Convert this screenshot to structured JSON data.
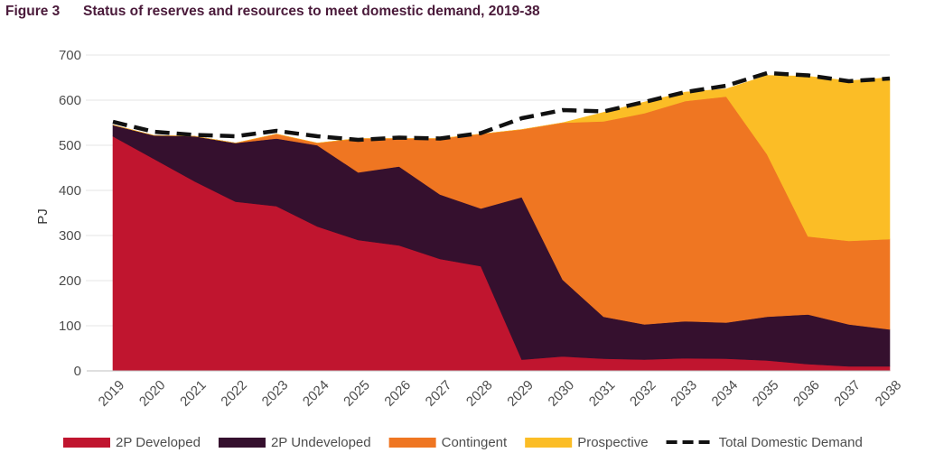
{
  "header": {
    "figure_label": "Figure 3",
    "title": "Status of reserves and resources to meet domestic demand, 2019-38"
  },
  "chart_data": {
    "type": "area",
    "stacked": true,
    "title": "Status of reserves and resources to meet domestic demand, 2019-38",
    "xlabel": "",
    "ylabel": "PJ",
    "ylim": [
      0,
      700
    ],
    "yticks": [
      0,
      100,
      200,
      300,
      400,
      500,
      600,
      700
    ],
    "grid": "horizontal",
    "legend_position": "bottom",
    "x": [
      "2019",
      "2020",
      "2021",
      "2022",
      "2023",
      "2024",
      "2025",
      "2026",
      "2027",
      "2028",
      "2029",
      "2030",
      "2031",
      "2032",
      "2033",
      "2034",
      "2035",
      "2036",
      "2037",
      "2038"
    ],
    "series": [
      {
        "name": "2P Developed",
        "kind": "area",
        "color": "#c0152f",
        "values": [
          520,
          470,
          420,
          375,
          365,
          320,
          290,
          278,
          248,
          232,
          25,
          32,
          27,
          25,
          28,
          27,
          23,
          15,
          10,
          10
        ]
      },
      {
        "name": "2P Undeveloped",
        "kind": "area",
        "color": "#35102e",
        "values": [
          25,
          52,
          100,
          130,
          150,
          180,
          150,
          175,
          143,
          128,
          360,
          170,
          93,
          78,
          82,
          80,
          97,
          110,
          93,
          82
        ]
      },
      {
        "name": "Contingent",
        "kind": "area",
        "color": "#ef7622",
        "values": [
          0,
          0,
          0,
          0,
          10,
          5,
          75,
          62,
          124,
          165,
          150,
          348,
          433,
          468,
          488,
          501,
          360,
          173,
          185,
          200
        ]
      },
      {
        "name": "Prospective",
        "kind": "area",
        "color": "#fbbd26",
        "values": [
          0,
          0,
          0,
          0,
          0,
          0,
          0,
          0,
          0,
          0,
          0,
          0,
          20,
          25,
          20,
          17,
          175,
          355,
          355,
          358
        ]
      },
      {
        "name": "Total Domestic Demand",
        "kind": "line",
        "color": "#111111",
        "dashed": true,
        "values": [
          552,
          530,
          523,
          520,
          532,
          520,
          512,
          517,
          515,
          527,
          560,
          578,
          575,
          596,
          618,
          632,
          660,
          655,
          642,
          648
        ]
      }
    ]
  }
}
